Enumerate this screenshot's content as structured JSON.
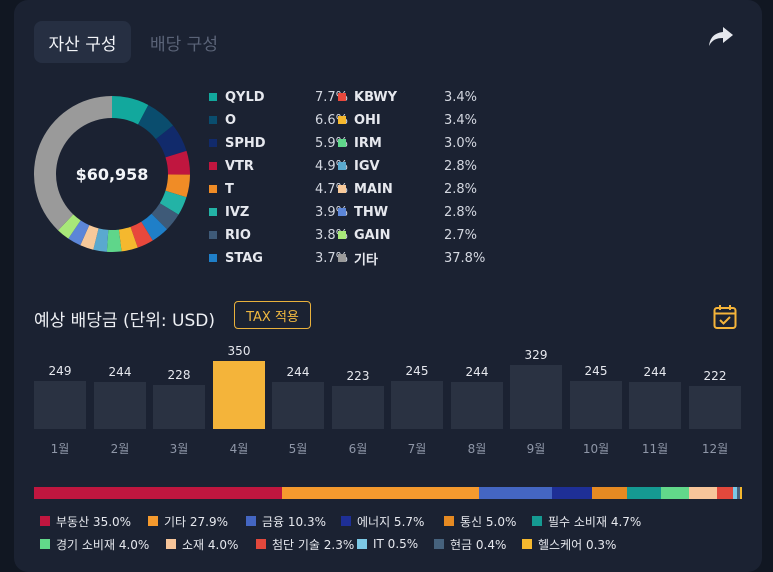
{
  "tabs": [
    {
      "label": "자산 구성",
      "active": true
    },
    {
      "label": "배당 구성",
      "active": false
    }
  ],
  "portfolio": {
    "total": "$60,958",
    "holdings": [
      {
        "ticker": "QYLD",
        "pct": "7.7%",
        "value": 7.7,
        "color": "#12a89d"
      },
      {
        "ticker": "O",
        "pct": "6.6%",
        "value": 6.6,
        "color": "#0a4d6e"
      },
      {
        "ticker": "SPHD",
        "pct": "5.9%",
        "value": 5.9,
        "color": "#112a6b"
      },
      {
        "ticker": "VTR",
        "pct": "4.9%",
        "value": 4.9,
        "color": "#c0163f"
      },
      {
        "ticker": "T",
        "pct": "4.7%",
        "value": 4.7,
        "color": "#f08c26"
      },
      {
        "ticker": "IVZ",
        "pct": "3.9%",
        "value": 3.9,
        "color": "#23b3a6"
      },
      {
        "ticker": "RIO",
        "pct": "3.8%",
        "value": 3.8,
        "color": "#3e5a78"
      },
      {
        "ticker": "STAG",
        "pct": "3.7%",
        "value": 3.7,
        "color": "#1f7fc8"
      },
      {
        "ticker": "KBWY",
        "pct": "3.4%",
        "value": 3.4,
        "color": "#e8483c"
      },
      {
        "ticker": "OHI",
        "pct": "3.4%",
        "value": 3.4,
        "color": "#f5b82e"
      },
      {
        "ticker": "IRM",
        "pct": "3.0%",
        "value": 3.0,
        "color": "#5fd68a"
      },
      {
        "ticker": "IGV",
        "pct": "2.8%",
        "value": 2.8,
        "color": "#5aa9cf"
      },
      {
        "ticker": "MAIN",
        "pct": "2.8%",
        "value": 2.8,
        "color": "#f7c99a"
      },
      {
        "ticker": "THW",
        "pct": "2.8%",
        "value": 2.8,
        "color": "#5c86d8"
      },
      {
        "ticker": "GAIN",
        "pct": "2.7%",
        "value": 2.7,
        "color": "#a8e879"
      },
      {
        "ticker": "기타",
        "pct": "37.8%",
        "value": 37.8,
        "color": "#9a9a9a"
      }
    ]
  },
  "dividends": {
    "title": "예상 배당금 (단위: USD)",
    "tax_label": "TAX 적용",
    "highlight_month": 3
  },
  "chart_data": {
    "type": "bar",
    "categories": [
      "1월",
      "2월",
      "3월",
      "4월",
      "5월",
      "6월",
      "7월",
      "8월",
      "9월",
      "10월",
      "11월",
      "12월"
    ],
    "values": [
      249,
      244,
      228,
      350,
      244,
      223,
      245,
      244,
      329,
      245,
      244,
      222
    ],
    "title": "예상 배당금 (단위: USD)",
    "ylim": [
      0,
      350
    ],
    "grid": false
  },
  "sectors": [
    {
      "name": "부동산",
      "pct": "35.0%",
      "value": 35.0,
      "color": "#c0163f"
    },
    {
      "name": "기타",
      "pct": "27.9%",
      "value": 27.9,
      "color": "#f59a2e"
    },
    {
      "name": "금융",
      "pct": "10.3%",
      "value": 10.3,
      "color": "#4466c2"
    },
    {
      "name": "에너지",
      "pct": "5.7%",
      "value": 5.7,
      "color": "#1e2f96"
    },
    {
      "name": "통신",
      "pct": "5.0%",
      "value": 5.0,
      "color": "#e68a22"
    },
    {
      "name": "필수 소비재",
      "pct": "4.7%",
      "value": 4.7,
      "color": "#159a92"
    },
    {
      "name": "경기 소비재",
      "pct": "4.0%",
      "value": 4.0,
      "color": "#62d88a"
    },
    {
      "name": "소재",
      "pct": "4.0%",
      "value": 4.0,
      "color": "#f7c59a"
    },
    {
      "name": "첨단 기술",
      "pct": "2.3%",
      "value": 2.3,
      "color": "#e2483c"
    },
    {
      "name": "IT",
      "pct": "0.5%",
      "value": 0.5,
      "color": "#7cc9e6"
    },
    {
      "name": "현금",
      "pct": "0.4%",
      "value": 0.4,
      "color": "#46627d"
    },
    {
      "name": "헬스케어",
      "pct": "0.3%",
      "value": 0.3,
      "color": "#f5b82e"
    }
  ]
}
